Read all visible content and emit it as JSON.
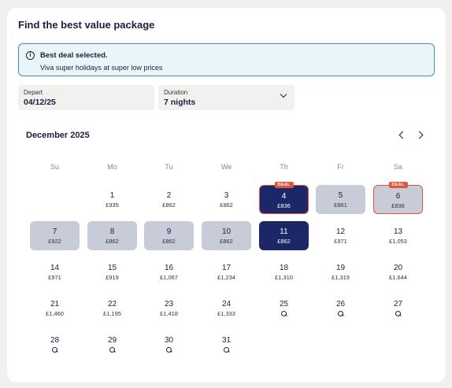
{
  "title": "Find the best value package",
  "alert": {
    "title": "Best deal selected.",
    "text": "Viva super holidays at super low prices",
    "icon": "info-icon"
  },
  "depart": {
    "label": "Depart",
    "value": "04/12/25"
  },
  "duration": {
    "label": "Duration",
    "value": "7 nights",
    "icon": "chevron-down-icon"
  },
  "calendar": {
    "month": "December 2025",
    "weekdays": [
      "Su",
      "Mo",
      "Tu",
      "We",
      "Th",
      "Fr",
      "Sa"
    ],
    "deal_badge": "DEAL",
    "days": [
      {
        "day": "1",
        "price": "£935",
        "state": "normal",
        "deal": false
      },
      {
        "day": "2",
        "price": "£862",
        "state": "normal",
        "deal": false
      },
      {
        "day": "3",
        "price": "£862",
        "state": "normal",
        "deal": false
      },
      {
        "day": "4",
        "price": "£836",
        "state": "selected",
        "deal": true
      },
      {
        "day": "5",
        "price": "£861",
        "state": "range",
        "deal": false
      },
      {
        "day": "6",
        "price": "£836",
        "state": "range",
        "deal": true
      },
      {
        "day": "7",
        "price": "£922",
        "state": "range",
        "deal": false
      },
      {
        "day": "8",
        "price": "£862",
        "state": "range",
        "deal": false
      },
      {
        "day": "9",
        "price": "£862",
        "state": "range",
        "deal": false
      },
      {
        "day": "10",
        "price": "£862",
        "state": "range",
        "deal": false
      },
      {
        "day": "11",
        "price": "£862",
        "state": "selected",
        "deal": false
      },
      {
        "day": "12",
        "price": "£971",
        "state": "normal",
        "deal": false
      },
      {
        "day": "13",
        "price": "£1,053",
        "state": "normal",
        "deal": false
      },
      {
        "day": "14",
        "price": "£971",
        "state": "normal",
        "deal": false
      },
      {
        "day": "15",
        "price": "£919",
        "state": "normal",
        "deal": false
      },
      {
        "day": "16",
        "price": "£1,067",
        "state": "normal",
        "deal": false
      },
      {
        "day": "17",
        "price": "£1,234",
        "state": "normal",
        "deal": false
      },
      {
        "day": "18",
        "price": "£1,310",
        "state": "normal",
        "deal": false
      },
      {
        "day": "19",
        "price": "£1,319",
        "state": "normal",
        "deal": false
      },
      {
        "day": "20",
        "price": "£1,644",
        "state": "normal",
        "deal": false
      },
      {
        "day": "21",
        "price": "£1,460",
        "state": "normal",
        "deal": false
      },
      {
        "day": "22",
        "price": "£1,195",
        "state": "normal",
        "deal": false
      },
      {
        "day": "23",
        "price": "£1,418",
        "state": "normal",
        "deal": false
      },
      {
        "day": "24",
        "price": "£1,333",
        "state": "normal",
        "deal": false
      },
      {
        "day": "25",
        "price": "",
        "state": "search",
        "deal": false
      },
      {
        "day": "26",
        "price": "",
        "state": "search",
        "deal": false
      },
      {
        "day": "27",
        "price": "",
        "state": "search",
        "deal": false
      },
      {
        "day": "28",
        "price": "",
        "state": "search",
        "deal": false
      },
      {
        "day": "29",
        "price": "",
        "state": "search",
        "deal": false
      },
      {
        "day": "30",
        "price": "",
        "state": "search",
        "deal": false
      },
      {
        "day": "31",
        "price": "",
        "state": "search",
        "deal": false
      }
    ],
    "first_weekday_index": 1
  }
}
